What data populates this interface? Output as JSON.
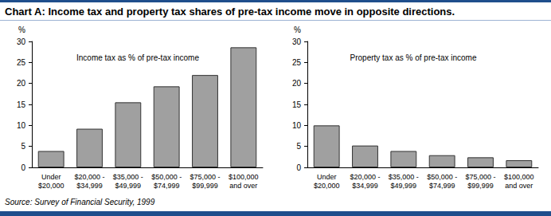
{
  "title": "Chart A: Income tax and property tax shares of pre-tax income move in opposite directions.",
  "source": "Source: Survey of Financial Security, 1999",
  "chart_data": [
    {
      "type": "bar",
      "title": "Income tax as % of pre-tax income",
      "ylabel": "%",
      "categories": [
        "Under\n$20,000",
        "$20,000 -\n$34,999",
        "$35,000 -\n$49,999",
        "$50,000 -\n$74,999",
        "$75,000 -\n$99,999",
        "$100,000\nand over"
      ],
      "values": [
        3.9,
        9.2,
        15.5,
        19.3,
        22.0,
        28.6
      ],
      "color": "#a0a0a0",
      "ylim": [
        0,
        30
      ],
      "yticks": [
        0,
        5,
        10,
        15,
        20,
        25,
        30
      ],
      "grid": false
    },
    {
      "type": "bar",
      "title": "Property tax as % of pre-tax income",
      "ylabel": "%",
      "categories": [
        "Under\n$20,000",
        "$20,000 -\n$34,999",
        "$35,000 -\n$49,999",
        "$50,000 -\n$74,999",
        "$75,000 -\n$99,999",
        "$100,000\nand over"
      ],
      "values": [
        10.0,
        5.2,
        3.9,
        2.9,
        2.4,
        1.7
      ],
      "color": "#a0a0a0",
      "ylim": [
        0,
        30
      ],
      "yticks": [
        0,
        5,
        10,
        15,
        20,
        25,
        30
      ],
      "grid": false
    }
  ]
}
